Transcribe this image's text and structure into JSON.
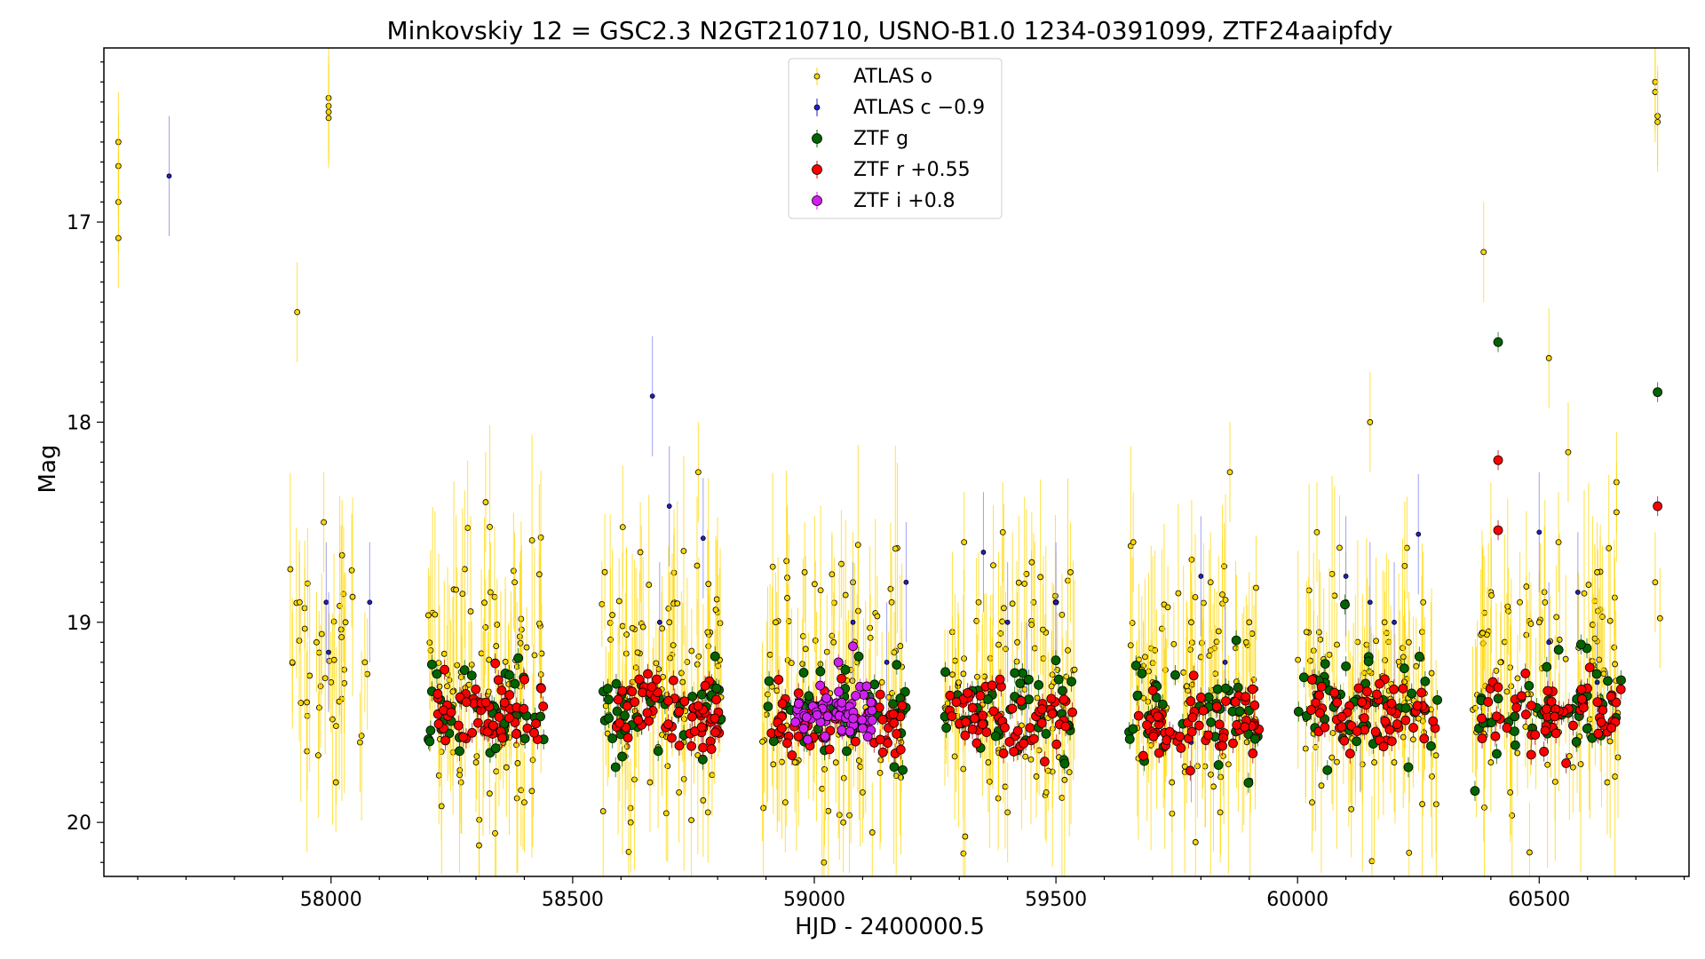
{
  "chart_data": {
    "type": "scatter",
    "title": "Minkovskiy 12 = GSC2.3 N2GT210710, USNO-B1.0 1234-0391099, ZTF24aaipfdy",
    "xlabel": "HJD - 2400000.5",
    "ylabel": "Mag",
    "xlim": [
      57530,
      60810
    ],
    "ylim": [
      20.27,
      16.13
    ],
    "y_inverted": true,
    "grid": false,
    "legend_position": "upper center",
    "xticks": [
      58000,
      58500,
      59000,
      59500,
      60000,
      60500
    ],
    "xtick_labels": [
      "58000",
      "58500",
      "59000",
      "59500",
      "60000",
      "60500"
    ],
    "yticks": [
      17,
      18,
      19,
      20
    ],
    "ytick_labels": [
      "17",
      "18",
      "19",
      "20"
    ],
    "seasons": [
      {
        "start": 57900,
        "end": 58080,
        "ztf": false
      },
      {
        "start": 58200,
        "end": 58440,
        "ztf": true,
        "center": 19.42
      },
      {
        "start": 58560,
        "end": 58810,
        "ztf": true,
        "center": 19.42
      },
      {
        "start": 58890,
        "end": 59190,
        "ztf": true,
        "center": 19.46
      },
      {
        "start": 59260,
        "end": 59540,
        "ztf": true,
        "center": 19.42
      },
      {
        "start": 59650,
        "end": 59920,
        "ztf": true,
        "center": 19.48
      },
      {
        "start": 60000,
        "end": 60290,
        "ztf": true,
        "center": 19.4
      },
      {
        "start": 60360,
        "end": 60670,
        "ztf": true,
        "center": 19.42
      }
    ],
    "series": [
      {
        "name": "ATLAS o",
        "color": "#ffd700",
        "err_color": "#ffd700",
        "marker_size": 6,
        "points": [
          [
            57560,
            16.6
          ],
          [
            57560,
            16.72
          ],
          [
            57560,
            16.9
          ],
          [
            57560,
            17.08
          ],
          [
            57930,
            17.45
          ],
          [
            57995,
            16.38
          ],
          [
            57995,
            16.42
          ],
          [
            57995,
            16.45
          ],
          [
            57995,
            16.48
          ],
          [
            57920,
            19.2
          ],
          [
            57935,
            18.9
          ],
          [
            57950,
            19.4
          ],
          [
            57970,
            19.1
          ],
          [
            57985,
            18.5
          ],
          [
            58000,
            19.3
          ],
          [
            58010,
            19.8
          ],
          [
            58030,
            19.0
          ],
          [
            58060,
            19.6
          ],
          [
            58070,
            19.2
          ],
          [
            58320,
            18.4
          ],
          [
            58300,
            19.7
          ],
          [
            58330,
            18.85
          ],
          [
            58380,
            18.8
          ],
          [
            58400,
            19.9
          ],
          [
            58640,
            18.65
          ],
          [
            58660,
            19.8
          ],
          [
            58700,
            19.0
          ],
          [
            58720,
            19.85
          ],
          [
            58760,
            18.25
          ],
          [
            58780,
            19.95
          ],
          [
            58620,
            20.0
          ],
          [
            58730,
            19.6
          ],
          [
            58920,
            19.0
          ],
          [
            58940,
            19.9
          ],
          [
            58960,
            19.7
          ],
          [
            58980,
            18.75
          ],
          [
            59000,
            19.55
          ],
          [
            59020,
            20.2
          ],
          [
            59040,
            19.1
          ],
          [
            59060,
            20.0
          ],
          [
            59080,
            18.8
          ],
          [
            59100,
            19.85
          ],
          [
            59120,
            20.05
          ],
          [
            59140,
            19.3
          ],
          [
            59160,
            18.9
          ],
          [
            59180,
            19.6
          ],
          [
            59310,
            18.6
          ],
          [
            59340,
            18.9
          ],
          [
            59360,
            19.7
          ],
          [
            59390,
            18.55
          ],
          [
            59400,
            19.95
          ],
          [
            59420,
            19.1
          ],
          [
            59450,
            18.7
          ],
          [
            59480,
            19.85
          ],
          [
            59500,
            18.9
          ],
          [
            59530,
            18.75
          ],
          [
            59660,
            18.6
          ],
          [
            59700,
            19.3
          ],
          [
            59740,
            19.8
          ],
          [
            59780,
            19.0
          ],
          [
            59820,
            18.8
          ],
          [
            59840,
            19.95
          ],
          [
            59860,
            18.25
          ],
          [
            59880,
            19.5
          ],
          [
            59900,
            19.0
          ],
          [
            60030,
            19.9
          ],
          [
            60040,
            18.55
          ],
          [
            60060,
            19.3
          ],
          [
            60100,
            18.9
          ],
          [
            60120,
            19.6
          ],
          [
            60150,
            18.0
          ],
          [
            60180,
            19.0
          ],
          [
            60200,
            19.7
          ],
          [
            60230,
            19.1
          ],
          [
            60260,
            18.9
          ],
          [
            60385,
            17.15
          ],
          [
            60400,
            19.7
          ],
          [
            60420,
            19.2
          ],
          [
            60440,
            19.85
          ],
          [
            60460,
            18.9
          ],
          [
            60480,
            20.15
          ],
          [
            60500,
            19.0
          ],
          [
            60520,
            17.68
          ],
          [
            60540,
            18.6
          ],
          [
            60560,
            18.15
          ],
          [
            60580,
            19.4
          ],
          [
            60620,
            18.75
          ],
          [
            60660,
            18.3
          ],
          [
            60660,
            18.45
          ],
          [
            60740,
            16.3
          ],
          [
            60740,
            16.35
          ],
          [
            60745,
            16.47
          ],
          [
            60745,
            16.5
          ],
          [
            60740,
            18.8
          ],
          [
            60750,
            18.98
          ]
        ]
      },
      {
        "name": "ATLAS c −0.9",
        "color": "#2020cc",
        "err_color": "#8080ee",
        "marker_size": 5,
        "points": [
          [
            57665,
            16.77
          ],
          [
            57990,
            18.9
          ],
          [
            57995,
            19.15
          ],
          [
            58080,
            18.9
          ],
          [
            58665,
            17.87
          ],
          [
            58700,
            18.42
          ],
          [
            58770,
            18.58
          ],
          [
            58680,
            19.0
          ],
          [
            59080,
            19.0
          ],
          [
            59190,
            18.8
          ],
          [
            59150,
            19.2
          ],
          [
            59350,
            18.65
          ],
          [
            59400,
            19.0
          ],
          [
            59440,
            19.3
          ],
          [
            59500,
            18.9
          ],
          [
            59800,
            18.77
          ],
          [
            59780,
            19.6
          ],
          [
            59850,
            19.2
          ],
          [
            60100,
            18.77
          ],
          [
            60150,
            18.9
          ],
          [
            60130,
            19.55
          ],
          [
            60250,
            18.56
          ],
          [
            60200,
            19.0
          ],
          [
            60500,
            18.55
          ],
          [
            60520,
            19.1
          ],
          [
            60580,
            18.85
          ],
          [
            60620,
            19.3
          ]
        ]
      },
      {
        "name": "ZTF g",
        "color": "#006400",
        "err_color": "#006400",
        "marker_size": 10,
        "points": [
          [
            60415,
            17.6
          ],
          [
            60745,
            17.85
          ]
        ]
      },
      {
        "name": "ZTF r +0.55",
        "color": "#ff0000",
        "err_color": "#aa0000",
        "marker_size": 10,
        "points": [
          [
            60415,
            18.19
          ],
          [
            60415,
            18.54
          ],
          [
            60745,
            18.42
          ]
        ]
      },
      {
        "name": "ZTF i +0.8",
        "color": "#d020f0",
        "err_color": "#d020f0",
        "marker_size": 10,
        "points": [
          [
            59080,
            19.12
          ],
          [
            59050,
            19.2
          ]
        ]
      }
    ]
  },
  "legend": [
    {
      "label": "ATLAS o",
      "color": "#ffd700",
      "size": "small"
    },
    {
      "label": "ATLAS c −0.9",
      "color": "#2020cc",
      "size": "small"
    },
    {
      "label": "ZTF g",
      "color": "#006400",
      "size": "large"
    },
    {
      "label": "ZTF r +0.55",
      "color": "#ff0000",
      "size": "large"
    },
    {
      "label": "ZTF i +0.8",
      "color": "#d020f0",
      "size": "large"
    }
  ]
}
